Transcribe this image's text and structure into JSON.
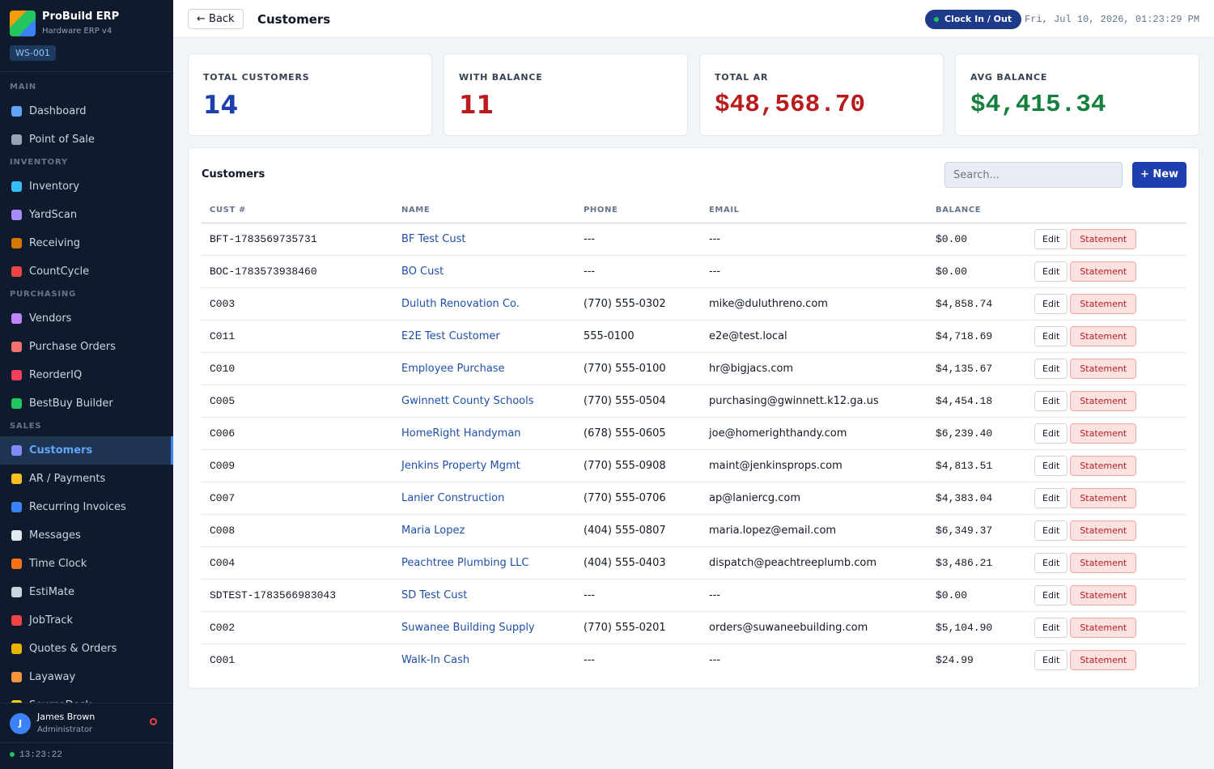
{
  "sidebar": {
    "brand": "ProBuild ERP",
    "subtitle": "Hardware ERP v4",
    "workstation": "WS-001",
    "sections": [
      {
        "title": "MAIN",
        "items": [
          "Dashboard",
          "Point of Sale"
        ]
      },
      {
        "title": "INVENTORY",
        "items": [
          "Inventory",
          "YardScan",
          "Receiving",
          "CountCycle"
        ]
      },
      {
        "title": "PURCHASING",
        "items": [
          "Vendors",
          "Purchase Orders",
          "ReorderIQ",
          "BestBuy Builder"
        ]
      },
      {
        "title": "SALES",
        "items": [
          "Customers",
          "AR / Payments",
          "Recurring Invoices",
          "Messages",
          "Time Clock",
          "EstiMate",
          "JobTrack",
          "Quotes & Orders",
          "Layaway",
          "SourceDesk"
        ]
      }
    ],
    "active": "Customers",
    "user": {
      "initial": "J",
      "name": "James Brown",
      "role": "Administrator"
    },
    "clock": "13:23:22"
  },
  "header": {
    "back": "← Back",
    "title": "Customers",
    "clock_button": "Clock In / Out",
    "datetime": "Fri, Jul 10, 2026, 01:23:29 PM"
  },
  "stats": [
    {
      "label": "TOTAL CUSTOMERS",
      "value": "14"
    },
    {
      "label": "WITH BALANCE",
      "value": "11"
    },
    {
      "label": "TOTAL AR",
      "value": "$48,568.70"
    },
    {
      "label": "AVG BALANCE",
      "value": "$4,415.34"
    }
  ],
  "table": {
    "title": "Customers",
    "search_placeholder": "Search...",
    "new_button": "+ New",
    "columns": [
      "CUST #",
      "NAME",
      "PHONE",
      "EMAIL",
      "BALANCE"
    ],
    "actions": [
      "Edit",
      "Statement"
    ],
    "rows": [
      [
        "BFT-1783569735731",
        "BF Test Cust",
        "---",
        "---",
        "$0.00"
      ],
      [
        "BOC-1783573938460",
        "BO Cust",
        "---",
        "---",
        "$0.00"
      ],
      [
        "C003",
        "Duluth Renovation Co.",
        "(770) 555-0302",
        "mike@duluthreno.com",
        "$4,858.74"
      ],
      [
        "C011",
        "E2E Test Customer",
        "555-0100",
        "e2e@test.local",
        "$4,718.69"
      ],
      [
        "C010",
        "Employee Purchase",
        "(770) 555-0100",
        "hr@bigjacs.com",
        "$4,135.67"
      ],
      [
        "C005",
        "Gwinnett County Schools",
        "(770) 555-0504",
        "purchasing@gwinnett.k12.ga.us",
        "$4,454.18"
      ],
      [
        "C006",
        "HomeRight Handyman",
        "(678) 555-0605",
        "joe@homerighthandy.com",
        "$6,239.40"
      ],
      [
        "C009",
        "Jenkins Property Mgmt",
        "(770) 555-0908",
        "maint@jenkinsprops.com",
        "$4,813.51"
      ],
      [
        "C007",
        "Lanier Construction",
        "(770) 555-0706",
        "ap@laniercg.com",
        "$4,383.04"
      ],
      [
        "C008",
        "Maria Lopez",
        "(404) 555-0807",
        "maria.lopez@email.com",
        "$6,349.37"
      ],
      [
        "C004",
        "Peachtree Plumbing LLC",
        "(404) 555-0403",
        "dispatch@peachtreeplumb.com",
        "$3,486.21"
      ],
      [
        "SDTEST-1783566983043",
        "SD Test Cust",
        "---",
        "---",
        "$0.00"
      ],
      [
        "C002",
        "Suwanee Building Supply",
        "(770) 555-0201",
        "orders@suwaneebuilding.com",
        "$5,104.90"
      ],
      [
        "C001",
        "Walk-In Cash",
        "---",
        "---",
        "$24.99"
      ]
    ]
  }
}
